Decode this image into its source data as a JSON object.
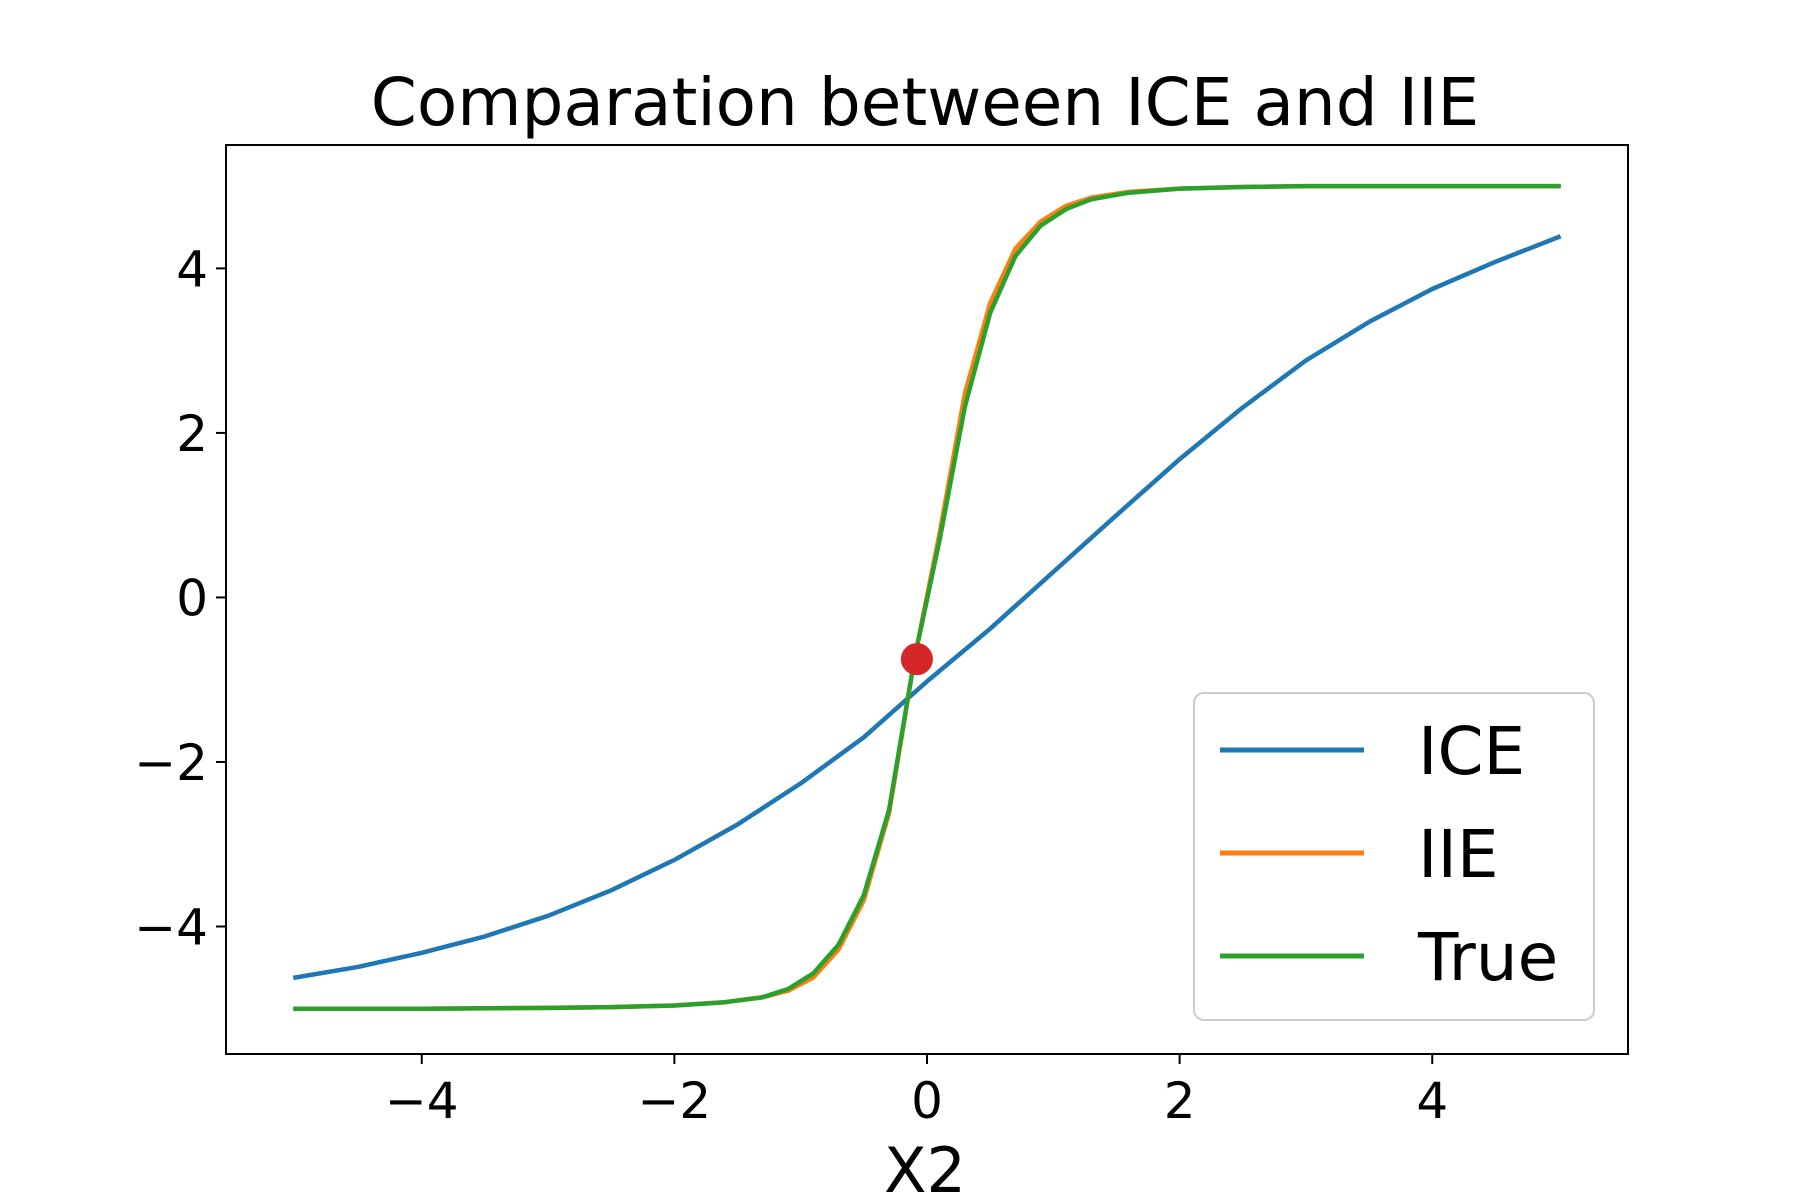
{
  "chart_data": {
    "type": "line",
    "title": "Comparation between ICE and IIE",
    "xlabel": "X2",
    "ylabel": "",
    "xlim": [
      -5.55,
      5.55
    ],
    "ylim": [
      -5.55,
      5.5
    ],
    "xticks": [
      -4,
      -2,
      0,
      2,
      4
    ],
    "yticks": [
      -4,
      -2,
      0,
      2,
      4
    ],
    "xtick_labels": [
      "−4",
      "−2",
      "0",
      "2",
      "4"
    ],
    "ytick_labels": [
      "−4",
      "−2",
      "0",
      "2",
      "4"
    ],
    "grid": false,
    "legend_position": "lower-right",
    "series": [
      {
        "name": "ICE",
        "color": "#1f77b4",
        "x": [
          -5.0,
          -4.5,
          -4.0,
          -3.5,
          -3.0,
          -2.5,
          -2.0,
          -1.5,
          -1.0,
          -0.5,
          0.0,
          0.5,
          1.0,
          1.5,
          2.0,
          2.5,
          3.0,
          3.5,
          4.0,
          4.5,
          5.0
        ],
        "y": [
          -4.62,
          -4.49,
          -4.32,
          -4.12,
          -3.87,
          -3.56,
          -3.19,
          -2.76,
          -2.26,
          -1.7,
          -1.02,
          -0.38,
          0.31,
          1.0,
          1.68,
          2.31,
          2.88,
          3.35,
          3.75,
          4.08,
          4.38
        ]
      },
      {
        "name": "IIE",
        "color": "#ff7f0e",
        "x": [
          -5.0,
          -4.0,
          -3.0,
          -2.5,
          -2.0,
          -1.6,
          -1.3,
          -1.1,
          -0.9,
          -0.7,
          -0.5,
          -0.3,
          -0.1,
          0.1,
          0.3,
          0.5,
          0.7,
          0.9,
          1.1,
          1.3,
          1.6,
          2.0,
          2.5,
          3.0,
          4.0,
          5.0
        ],
        "y": [
          -5.0,
          -5.0,
          -4.99,
          -4.98,
          -4.96,
          -4.92,
          -4.86,
          -4.78,
          -4.62,
          -4.28,
          -3.68,
          -2.62,
          -0.75,
          0.78,
          2.48,
          3.58,
          4.24,
          4.57,
          4.76,
          4.86,
          4.93,
          4.97,
          4.99,
          5.0,
          5.0,
          5.0
        ]
      },
      {
        "name": "True",
        "color": "#2ca02c",
        "x": [
          -5.0,
          -4.0,
          -3.0,
          -2.5,
          -2.0,
          -1.6,
          -1.3,
          -1.1,
          -0.9,
          -0.7,
          -0.5,
          -0.3,
          -0.1,
          0.1,
          0.3,
          0.5,
          0.7,
          0.9,
          1.1,
          1.3,
          1.6,
          2.0,
          2.5,
          3.0,
          4.0,
          5.0
        ],
        "y": [
          -5.0,
          -5.0,
          -4.99,
          -4.98,
          -4.96,
          -4.92,
          -4.86,
          -4.76,
          -4.57,
          -4.22,
          -3.62,
          -2.58,
          -0.75,
          0.7,
          2.32,
          3.46,
          4.15,
          4.52,
          4.72,
          4.84,
          4.92,
          4.97,
          4.99,
          5.0,
          5.0,
          5.0
        ]
      }
    ],
    "marker": {
      "x": -0.08,
      "y": -0.75,
      "color": "#d62728"
    }
  }
}
